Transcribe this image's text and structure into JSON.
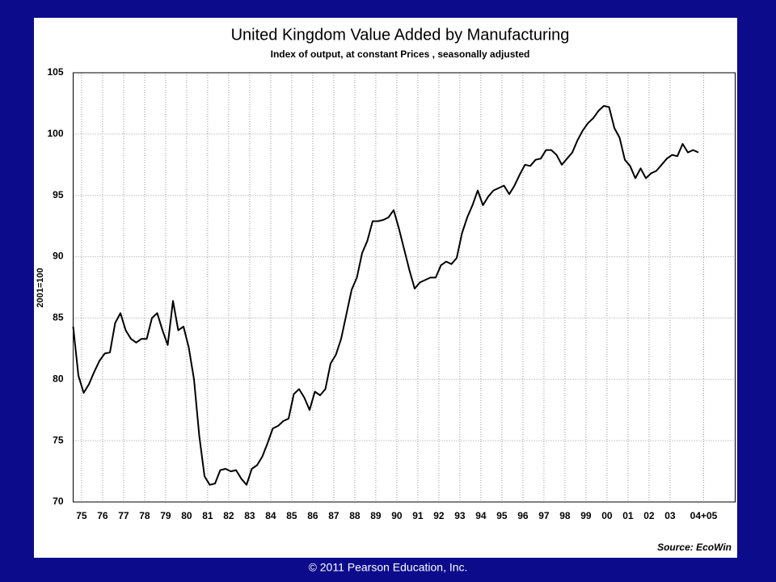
{
  "chart_data": {
    "type": "line",
    "title": "United Kingdom Value Added by Manufacturing",
    "subtitle": "Index of output, at constant Prices , seasonally adjusted",
    "y_label": "2001=100",
    "source": "Source: EcoWin",
    "footer": "© 2011 Pearson Education, Inc.",
    "color": "#000000",
    "grid": true,
    "xlim": [
      1975,
      2006.5
    ],
    "ylim": [
      70,
      105
    ],
    "yticks": [
      70,
      75,
      80,
      85,
      90,
      95,
      100,
      105
    ],
    "xticks": [
      {
        "value": 1975.4,
        "label": "75"
      },
      {
        "value": 1976.4,
        "label": "76"
      },
      {
        "value": 1977.4,
        "label": "77"
      },
      {
        "value": 1978.4,
        "label": "78"
      },
      {
        "value": 1979.4,
        "label": "79"
      },
      {
        "value": 1980.4,
        "label": "80"
      },
      {
        "value": 1981.4,
        "label": "81"
      },
      {
        "value": 1982.4,
        "label": "82"
      },
      {
        "value": 1983.4,
        "label": "83"
      },
      {
        "value": 1984.4,
        "label": "84"
      },
      {
        "value": 1985.4,
        "label": "85"
      },
      {
        "value": 1986.4,
        "label": "86"
      },
      {
        "value": 1987.4,
        "label": "87"
      },
      {
        "value": 1988.4,
        "label": "88"
      },
      {
        "value": 1989.4,
        "label": "89"
      },
      {
        "value": 1990.4,
        "label": "90"
      },
      {
        "value": 1991.4,
        "label": "91"
      },
      {
        "value": 1992.4,
        "label": "92"
      },
      {
        "value": 1993.4,
        "label": "93"
      },
      {
        "value": 1994.4,
        "label": "94"
      },
      {
        "value": 1995.4,
        "label": "95"
      },
      {
        "value": 1996.4,
        "label": "96"
      },
      {
        "value": 1997.4,
        "label": "97"
      },
      {
        "value": 1998.4,
        "label": "98"
      },
      {
        "value": 1999.4,
        "label": "99"
      },
      {
        "value": 2000.4,
        "label": "00"
      },
      {
        "value": 2001.4,
        "label": "01"
      },
      {
        "value": 2002.4,
        "label": "02"
      },
      {
        "value": 2003.4,
        "label": "03"
      },
      {
        "value": 2005.0,
        "label": "04+05"
      }
    ],
    "x": [
      1975,
      1975.25,
      1975.5,
      1975.75,
      1976,
      1976.25,
      1976.5,
      1976.75,
      1977,
      1977.25,
      1977.5,
      1977.75,
      1978,
      1978.25,
      1978.5,
      1978.75,
      1979,
      1979.25,
      1979.5,
      1979.75,
      1980,
      1980.25,
      1980.5,
      1980.75,
      1981,
      1981.25,
      1981.5,
      1981.75,
      1982,
      1982.25,
      1982.5,
      1982.75,
      1983,
      1983.25,
      1983.5,
      1983.75,
      1984,
      1984.25,
      1984.5,
      1984.75,
      1985,
      1985.25,
      1985.5,
      1985.75,
      1986,
      1986.25,
      1986.5,
      1986.75,
      1987,
      1987.25,
      1987.5,
      1987.75,
      1988,
      1988.25,
      1988.5,
      1988.75,
      1989,
      1989.25,
      1989.5,
      1989.75,
      1990,
      1990.25,
      1990.5,
      1990.75,
      1991,
      1991.25,
      1991.5,
      1991.75,
      1992,
      1992.25,
      1992.5,
      1992.75,
      1993,
      1993.25,
      1993.5,
      1993.75,
      1994,
      1994.25,
      1994.5,
      1994.75,
      1995,
      1995.25,
      1995.5,
      1995.75,
      1996,
      1996.25,
      1996.5,
      1996.75,
      1997,
      1997.25,
      1997.5,
      1997.75,
      1998,
      1998.25,
      1998.5,
      1998.75,
      1999,
      1999.25,
      1999.5,
      1999.75,
      2000,
      2000.25,
      2000.5,
      2000.75,
      2001,
      2001.25,
      2001.5,
      2001.75,
      2002,
      2002.25,
      2002.5,
      2002.75,
      2003,
      2003.25,
      2003.5,
      2003.75,
      2004,
      2004.25,
      2004.5,
      2004.75
    ],
    "values": [
      84.3,
      80.3,
      78.9,
      79.6,
      80.6,
      81.5,
      82.1,
      82.2,
      84.6,
      85.4,
      84.0,
      83.3,
      83.0,
      83.3,
      83.3,
      85.0,
      85.4,
      84.0,
      82.8,
      86.4,
      84.0,
      84.3,
      82.6,
      80.0,
      75.4,
      72.1,
      71.4,
      71.5,
      72.6,
      72.7,
      72.5,
      72.6,
      71.9,
      71.4,
      72.7,
      73.0,
      73.7,
      74.8,
      76.0,
      76.2,
      76.6,
      76.8,
      78.8,
      79.2,
      78.5,
      77.5,
      79.0,
      78.7,
      79.2,
      81.3,
      82.0,
      83.3,
      85.3,
      87.3,
      88.3,
      90.3,
      91.3,
      92.9,
      92.9,
      93.0,
      93.2,
      93.8,
      92.3,
      90.6,
      88.9,
      87.4,
      87.9,
      88.1,
      88.3,
      88.3,
      89.3,
      89.6,
      89.4,
      89.9,
      91.9,
      93.2,
      94.2,
      95.4,
      94.2,
      94.9,
      95.4,
      95.6,
      95.8,
      95.1,
      95.8,
      96.7,
      97.5,
      97.4,
      97.9,
      98.0,
      98.7,
      98.7,
      98.3,
      97.5,
      98.0,
      98.5,
      99.5,
      100.3,
      100.9,
      101.3,
      101.9,
      102.3,
      102.2,
      100.5,
      99.7,
      97.9,
      97.4,
      96.4,
      97.2,
      96.4,
      96.8,
      97.0,
      97.5,
      98.0,
      98.3,
      98.2,
      99.2,
      98.5,
      98.7,
      98.5
    ]
  }
}
